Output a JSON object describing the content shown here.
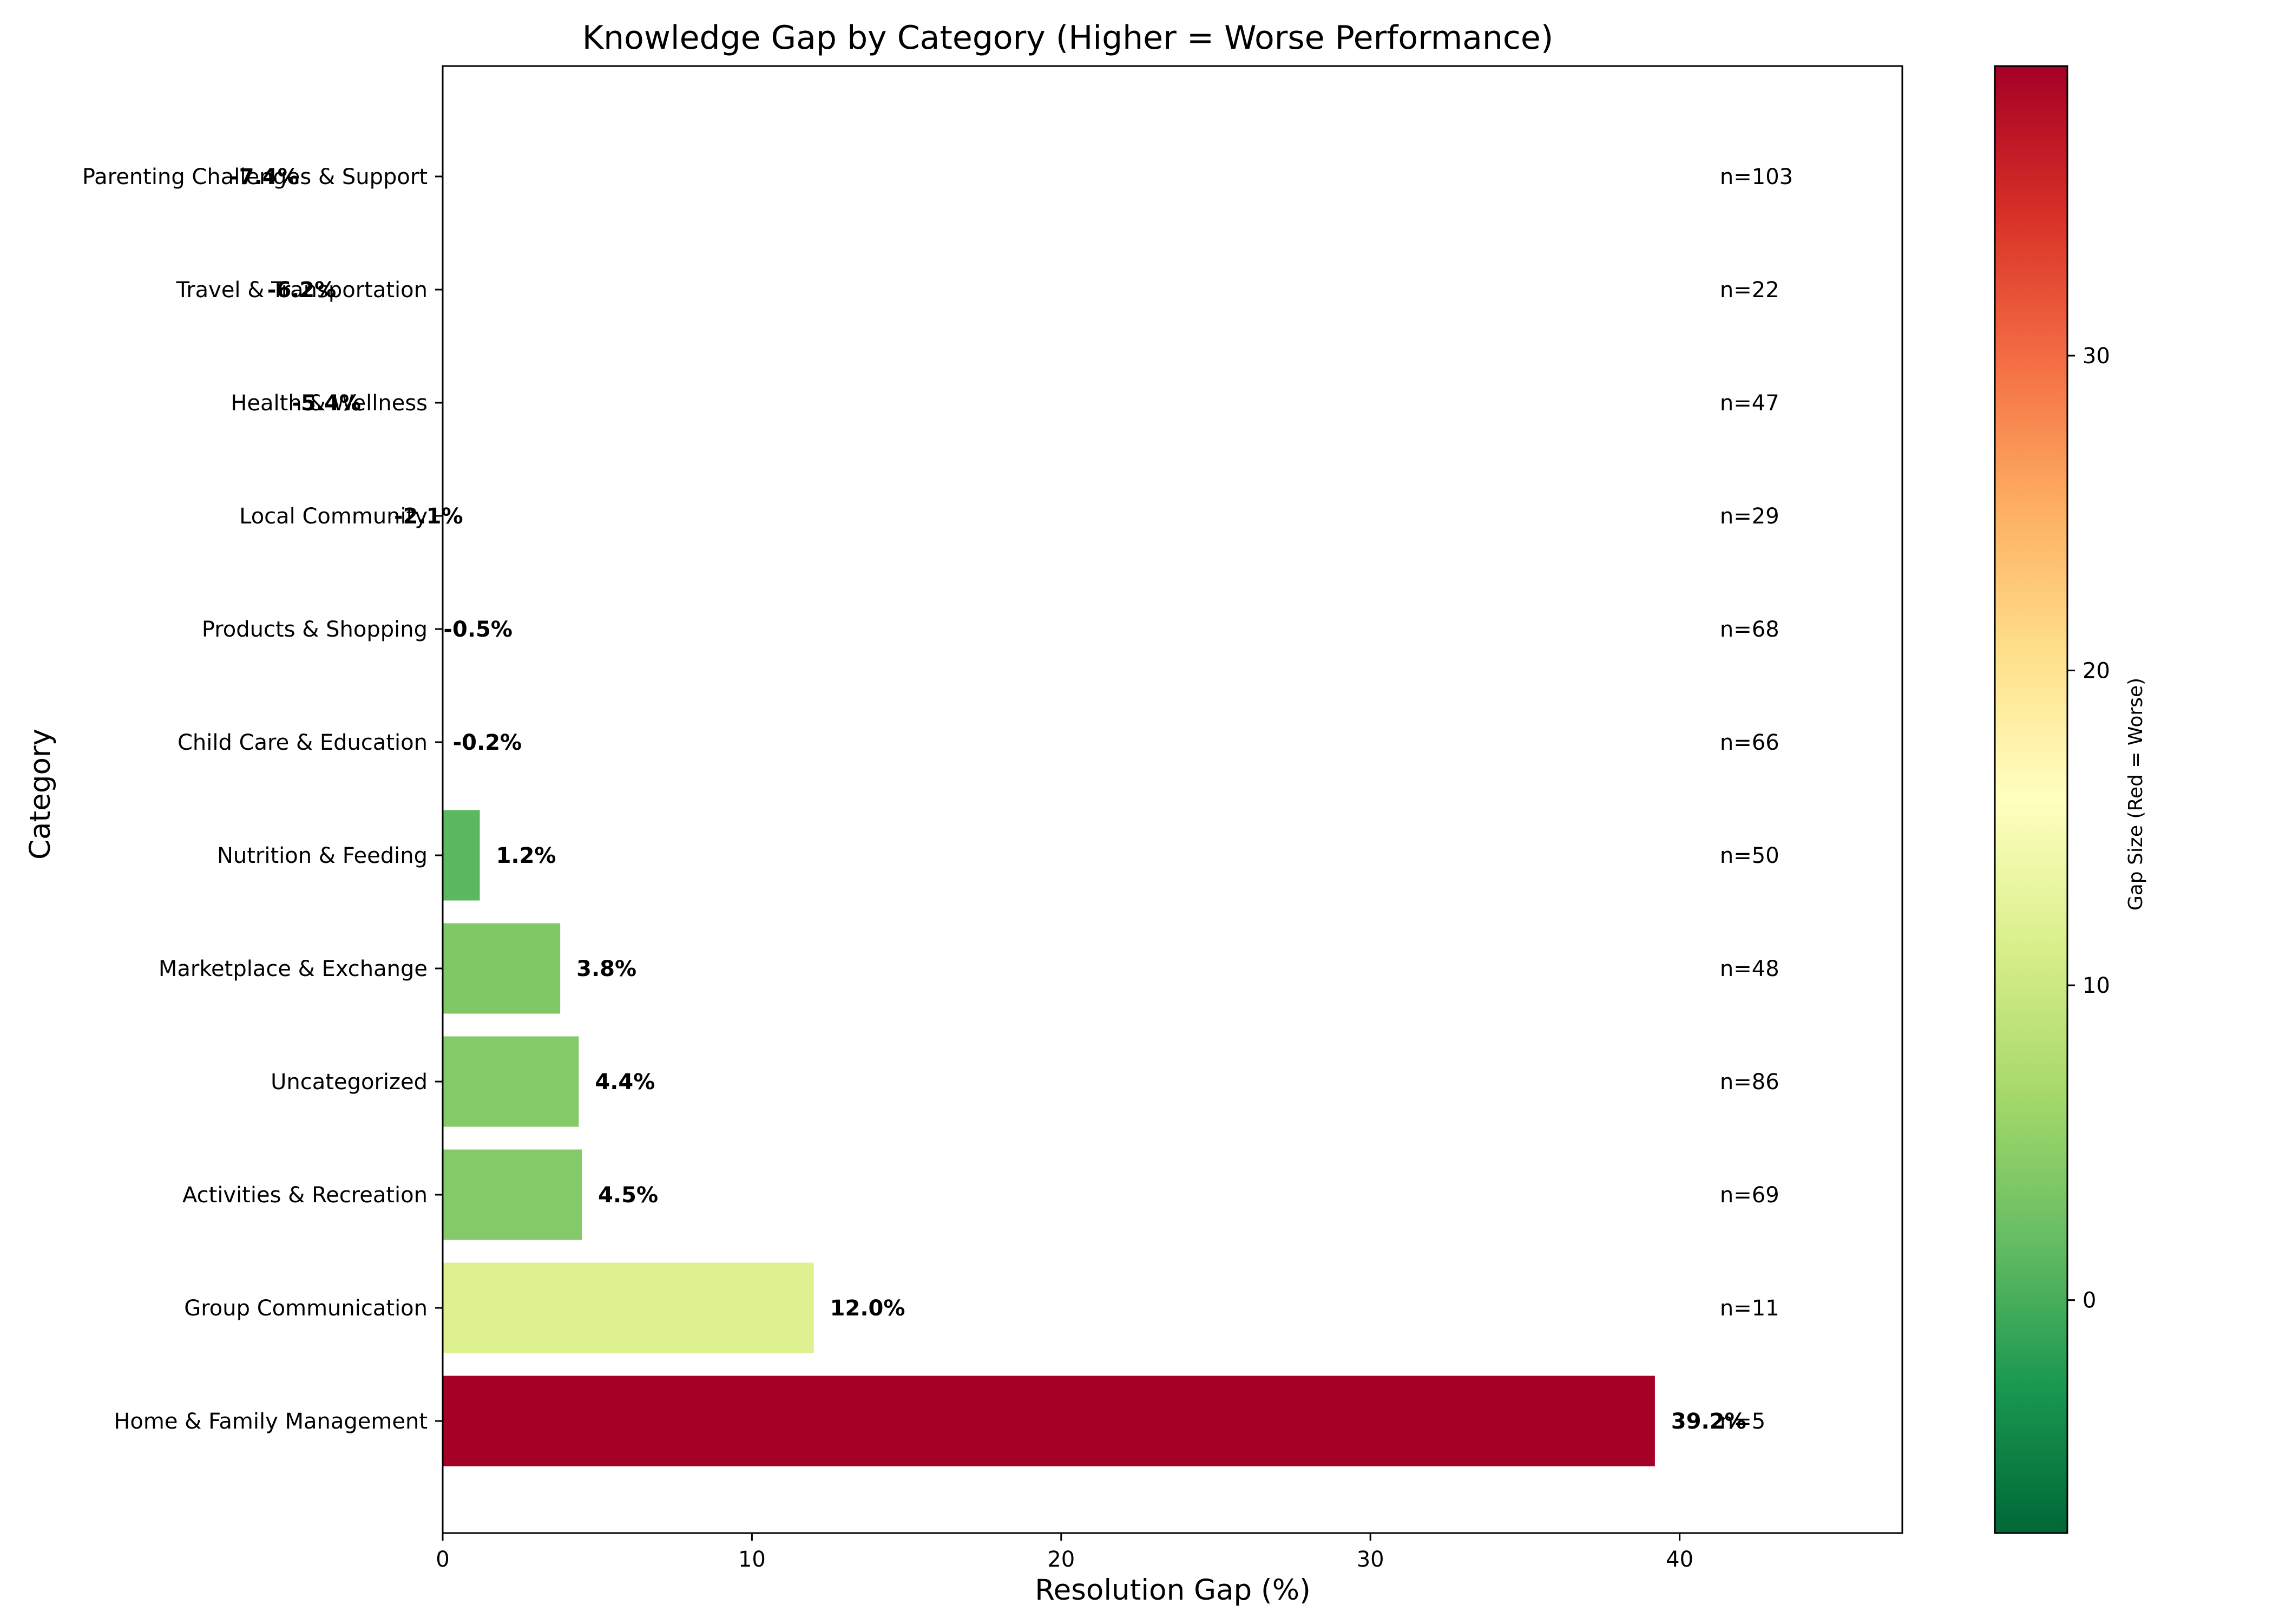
{
  "chart_data": {
    "type": "bar",
    "orientation": "horizontal",
    "title": "Knowledge Gap by Category (Higher = Worse Performance)",
    "xlabel": "Resolution Gap (%)",
    "ylabel": "Category",
    "xlim": [
      0,
      47.2
    ],
    "xticks": [
      0,
      10,
      20,
      30,
      40
    ],
    "grid": false,
    "categories": [
      "Home & Family Management",
      "Group Communication",
      "Activities & Recreation",
      "Uncategorized",
      "Marketplace & Exchange",
      "Nutrition & Feeding",
      "Child Care & Education",
      "Products & Shopping",
      "Local Community",
      "Health & Wellness",
      "Travel & Transportation",
      "Parenting Challenges & Support"
    ],
    "values": [
      39.2,
      12.0,
      4.5,
      4.4,
      3.8,
      1.2,
      -0.2,
      -0.5,
      -2.1,
      -5.4,
      -6.2,
      -7.4
    ],
    "value_labels": [
      "39.2%",
      "12.0%",
      "4.5%",
      "4.4%",
      "3.8%",
      "1.2%",
      "-0.2%",
      "-0.5%",
      "-2.1%",
      "-5.4%",
      "-6.2%",
      "-7.4%"
    ],
    "counts": [
      "n=5",
      "n=11",
      "n=69",
      "n=86",
      "n=48",
      "n=50",
      "n=66",
      "n=68",
      "n=29",
      "n=47",
      "n=22",
      "n=103"
    ],
    "colorbar": {
      "label": "Gap Size (Red = Worse)",
      "colormap": "RdYlGn_r",
      "range": [
        -7.4,
        39.2
      ],
      "ticks": [
        0,
        10,
        20,
        30
      ]
    },
    "bar_colors": [
      "#a50026",
      "#ddf191",
      "#84ca68",
      "#84ca68",
      "#7fc866",
      "#5cb860",
      "#4cb05c",
      "#4aae5b",
      "#36a055",
      "#1c8a48",
      "#0e7a42",
      "#006837"
    ]
  }
}
